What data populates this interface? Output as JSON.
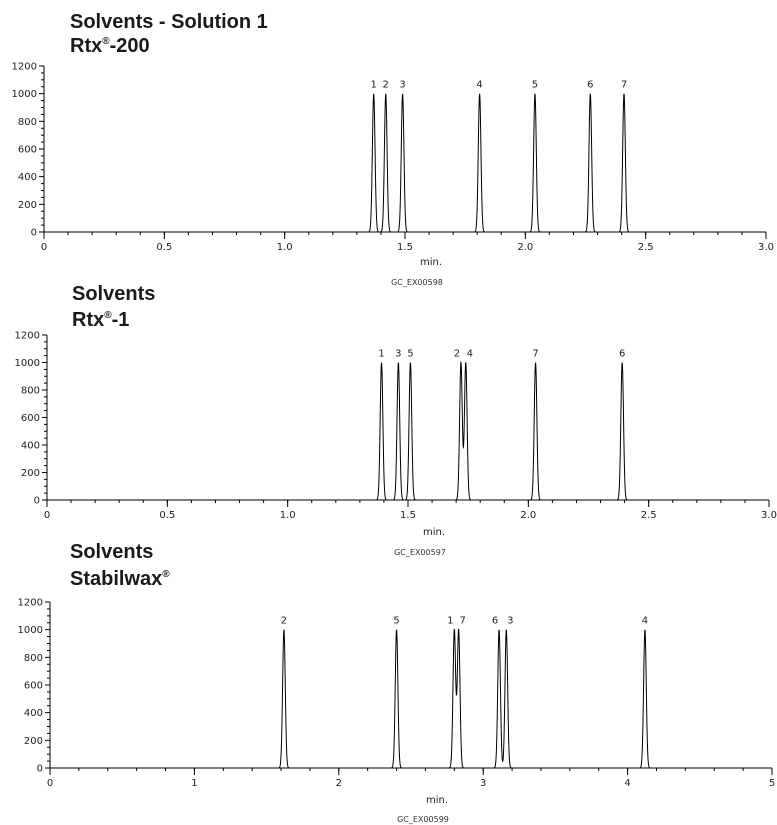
{
  "chart_data": [
    {
      "type": "line",
      "title_lines": [
        {
          "text": "Solvents - Solution 1",
          "sup": ""
        },
        {
          "text": "Rtx",
          "sup": "®",
          "after": "-200"
        }
      ],
      "xlabel": "min.",
      "code": "GC_EX00598",
      "xlim": [
        0,
        3.0
      ],
      "ylim": [
        0,
        1200
      ],
      "xticks": [
        0,
        0.5,
        1.0,
        1.5,
        2.0,
        2.5,
        3.0
      ],
      "xtick_labels": [
        "0",
        "0.5",
        "1.0",
        "1.5",
        "2.0",
        "2.5",
        "3.0"
      ],
      "yticks": [
        0,
        200,
        400,
        600,
        800,
        1000,
        1200
      ],
      "peaks": [
        {
          "label": "1",
          "rt": 1.37,
          "height": 1000
        },
        {
          "label": "2",
          "rt": 1.42,
          "height": 1000
        },
        {
          "label": "3",
          "rt": 1.49,
          "height": 1000
        },
        {
          "label": "4",
          "rt": 1.81,
          "height": 1000
        },
        {
          "label": "5",
          "rt": 2.04,
          "height": 1000
        },
        {
          "label": "6",
          "rt": 2.27,
          "height": 1000
        },
        {
          "label": "7",
          "rt": 2.41,
          "height": 1000
        }
      ]
    },
    {
      "type": "line",
      "title_lines": [
        {
          "text": "Solvents",
          "sup": ""
        },
        {
          "text": "Rtx",
          "sup": "®",
          "after": "-1"
        }
      ],
      "xlabel": "min.",
      "code": "GC_EX00597",
      "xlim": [
        0,
        3.0
      ],
      "ylim": [
        0,
        1200
      ],
      "xticks": [
        0,
        0.5,
        1.0,
        1.5,
        2.0,
        2.5,
        3.0
      ],
      "xtick_labels": [
        "0",
        "0.5",
        "1.0",
        "1.5",
        "2.0",
        "2.5",
        "3.0"
      ],
      "yticks": [
        0,
        200,
        400,
        600,
        800,
        1000,
        1200
      ],
      "peaks": [
        {
          "label": "1",
          "rt": 1.39,
          "height": 1000
        },
        {
          "label": "3",
          "rt": 1.46,
          "height": 1000
        },
        {
          "label": "5",
          "rt": 1.51,
          "height": 1000
        },
        {
          "label": "2",
          "rt": 1.72,
          "height": 1000
        },
        {
          "label": "4",
          "rt": 1.74,
          "height": 1000
        },
        {
          "label": "7",
          "rt": 2.03,
          "height": 1000
        },
        {
          "label": "6",
          "rt": 2.39,
          "height": 1000
        }
      ]
    },
    {
      "type": "line",
      "title_lines": [
        {
          "text": "Solvents",
          "sup": ""
        },
        {
          "text": "Stabilwax",
          "sup": "®",
          "after": ""
        }
      ],
      "xlabel": "min.",
      "code": "GC_EX00599",
      "xlim": [
        0,
        5
      ],
      "ylim": [
        0,
        1200
      ],
      "xticks": [
        0,
        1,
        2,
        3,
        4,
        5
      ],
      "xtick_labels": [
        "0",
        "1",
        "2",
        "3",
        "4",
        "5"
      ],
      "yticks": [
        0,
        200,
        400,
        600,
        800,
        1000,
        1200
      ],
      "peaks": [
        {
          "label": "2",
          "rt": 1.62,
          "height": 1000
        },
        {
          "label": "5",
          "rt": 2.4,
          "height": 1000
        },
        {
          "label": "1",
          "rt": 2.8,
          "height": 1000
        },
        {
          "label": "7",
          "rt": 2.83,
          "height": 1000
        },
        {
          "label": "6",
          "rt": 3.11,
          "height": 1000
        },
        {
          "label": "3",
          "rt": 3.16,
          "height": 1000
        },
        {
          "label": "4",
          "rt": 4.12,
          "height": 1000
        }
      ]
    }
  ]
}
